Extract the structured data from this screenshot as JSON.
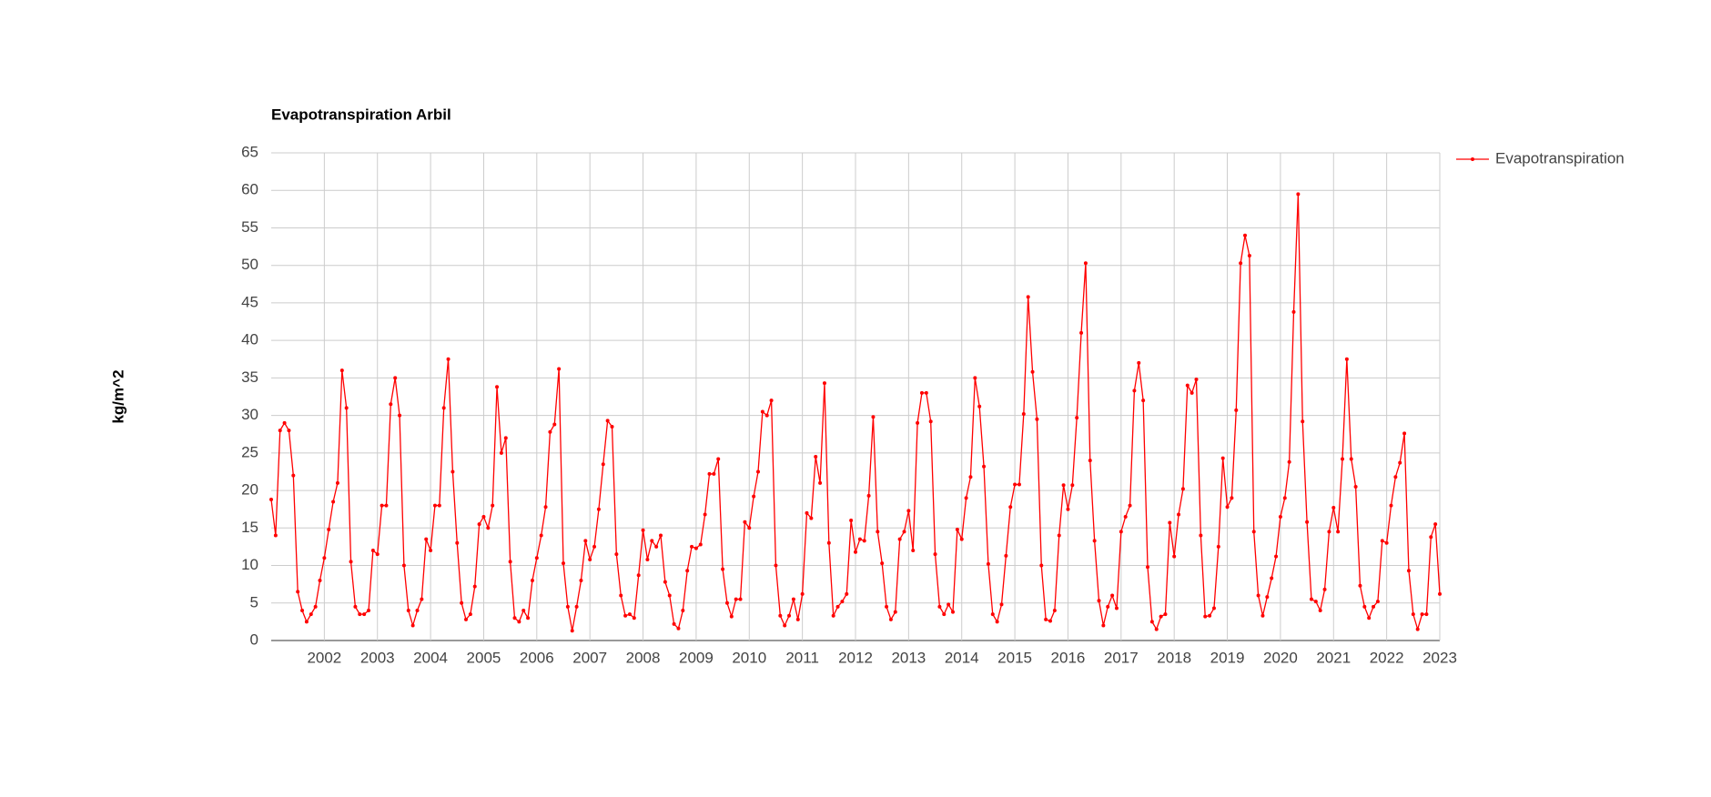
{
  "chart_data": {
    "type": "line",
    "title": "Evapotranspiration Arbil",
    "ylabel": "kg/m^2",
    "categories": [
      null,
      null,
      null,
      null,
      null,
      null,
      null,
      null,
      null,
      null,
      null,
      null,
      "2002",
      null,
      null,
      null,
      null,
      null,
      null,
      null,
      null,
      null,
      null,
      null,
      "2003",
      null,
      null,
      null,
      null,
      null,
      null,
      null,
      null,
      null,
      null,
      null,
      "2004",
      null,
      null,
      null,
      null,
      null,
      null,
      null,
      null,
      null,
      null,
      null,
      "2005",
      null,
      null,
      null,
      null,
      null,
      null,
      null,
      null,
      null,
      null,
      null,
      "2006",
      null,
      null,
      null,
      null,
      null,
      null,
      null,
      null,
      null,
      null,
      null,
      "2007",
      null,
      null,
      null,
      null,
      null,
      null,
      null,
      null,
      null,
      null,
      null,
      "2008",
      null,
      null,
      null,
      null,
      null,
      null,
      null,
      null,
      null,
      null,
      null,
      "2009",
      null,
      null,
      null,
      null,
      null,
      null,
      null,
      null,
      null,
      null,
      null,
      "2010",
      null,
      null,
      null,
      null,
      null,
      null,
      null,
      null,
      null,
      null,
      null,
      "2011",
      null,
      null,
      null,
      null,
      null,
      null,
      null,
      null,
      null,
      null,
      null,
      "2012",
      null,
      null,
      null,
      null,
      null,
      null,
      null,
      null,
      null,
      null,
      null,
      "2013",
      null,
      null,
      null,
      null,
      null,
      null,
      null,
      null,
      null,
      null,
      null,
      "2014",
      null,
      null,
      null,
      null,
      null,
      null,
      null,
      null,
      null,
      null,
      null,
      "2015",
      null,
      null,
      null,
      null,
      null,
      null,
      null,
      null,
      null,
      null,
      null,
      "2016",
      null,
      null,
      null,
      null,
      null,
      null,
      null,
      null,
      null,
      null,
      null,
      "2017",
      null,
      null,
      null,
      null,
      null,
      null,
      null,
      null,
      null,
      null,
      null,
      "2018",
      null,
      null,
      null,
      null,
      null,
      null,
      null,
      null,
      null,
      null,
      null,
      "2019",
      null,
      null,
      null,
      null,
      null,
      null,
      null,
      null,
      null,
      null,
      null,
      "2020",
      null,
      null,
      null,
      null,
      null,
      null,
      null,
      null,
      null,
      null,
      null,
      "2021",
      null,
      null,
      null,
      null,
      null,
      null,
      null,
      null,
      null,
      null,
      null,
      "2022",
      null,
      null,
      null,
      null,
      null,
      null,
      null,
      null,
      null,
      null,
      null,
      "2023"
    ],
    "series": [
      {
        "name": "Evapotranspiration",
        "color": "#ff0000",
        "values": [
          18.8,
          14,
          28,
          29,
          28,
          22,
          6.5,
          4,
          2.5,
          3.5,
          4.5,
          8,
          11,
          14.8,
          18.5,
          21,
          36,
          31,
          10.5,
          4.5,
          3.5,
          3.5,
          4,
          12,
          11.5,
          18,
          18,
          31.5,
          35,
          30,
          10,
          4,
          2,
          4,
          5.5,
          13.5,
          12,
          18,
          18,
          31,
          37.5,
          22.5,
          13,
          5,
          2.8,
          3.5,
          7.2,
          15.5,
          16.5,
          15,
          18,
          33.8,
          25,
          27,
          10.5,
          3,
          2.5,
          4,
          3,
          8,
          11,
          14,
          17.8,
          27.8,
          28.8,
          36.2,
          10.3,
          4.5,
          1.3,
          4.5,
          8,
          13.3,
          10.8,
          12.5,
          17.5,
          23.5,
          29.3,
          28.5,
          11.5,
          6,
          3.3,
          3.5,
          3,
          8.7,
          14.7,
          10.8,
          13.3,
          12.5,
          14,
          7.8,
          6,
          2.2,
          1.6,
          4,
          9.3,
          12.5,
          12.3,
          12.8,
          16.8,
          22.2,
          22.2,
          24.2,
          9.5,
          5,
          3.2,
          5.5,
          5.5,
          15.8,
          15,
          19.2,
          22.5,
          30.5,
          30,
          32,
          10,
          3.3,
          2,
          3.3,
          5.5,
          2.8,
          6.2,
          17,
          16.3,
          24.5,
          21,
          34.3,
          13,
          3.3,
          4.5,
          5.2,
          6.2,
          16,
          11.8,
          13.5,
          13.3,
          19.3,
          29.8,
          14.5,
          10.3,
          4.5,
          2.8,
          3.8,
          13.5,
          14.5,
          17.3,
          12,
          29,
          33,
          33,
          29.2,
          11.5,
          4.5,
          3.5,
          4.8,
          3.8,
          14.8,
          13.5,
          19,
          21.8,
          35,
          31.2,
          23.2,
          10.2,
          3.5,
          2.5,
          4.8,
          11.3,
          17.8,
          20.8,
          20.8,
          30.2,
          45.8,
          35.8,
          29.5,
          10,
          2.8,
          2.6,
          4,
          14,
          20.7,
          17.5,
          20.7,
          29.7,
          41,
          50.3,
          24,
          13.3,
          5.3,
          2,
          4.5,
          6,
          4.3,
          14.5,
          16.5,
          18,
          33.3,
          37,
          32,
          9.8,
          2.5,
          1.5,
          3.2,
          3.5,
          15.7,
          11.2,
          16.8,
          20.2,
          34,
          33,
          34.8,
          14,
          3.2,
          3.3,
          4.3,
          12.5,
          24.3,
          17.8,
          19,
          30.7,
          50.3,
          54,
          51.3,
          14.5,
          6,
          3.3,
          5.8,
          8.3,
          11.2,
          16.5,
          19,
          23.8,
          43.8,
          59.5,
          29.2,
          15.8,
          5.5,
          5.2,
          4,
          6.8,
          14.5,
          17.7,
          14.5,
          24.2,
          37.5,
          24.2,
          20.5,
          7.3,
          4.5,
          3,
          4.5,
          5.2,
          13.3,
          13,
          18,
          21.8,
          23.7,
          27.6,
          9.3,
          3.5,
          1.5,
          3.5,
          3.5,
          13.8,
          15.5,
          6.2
        ]
      }
    ],
    "ylim": [
      0,
      65
    ],
    "yticks": [
      0,
      5,
      10,
      15,
      20,
      25,
      30,
      35,
      40,
      45,
      50,
      55,
      60,
      65
    ],
    "grid": true,
    "legend": "right"
  }
}
